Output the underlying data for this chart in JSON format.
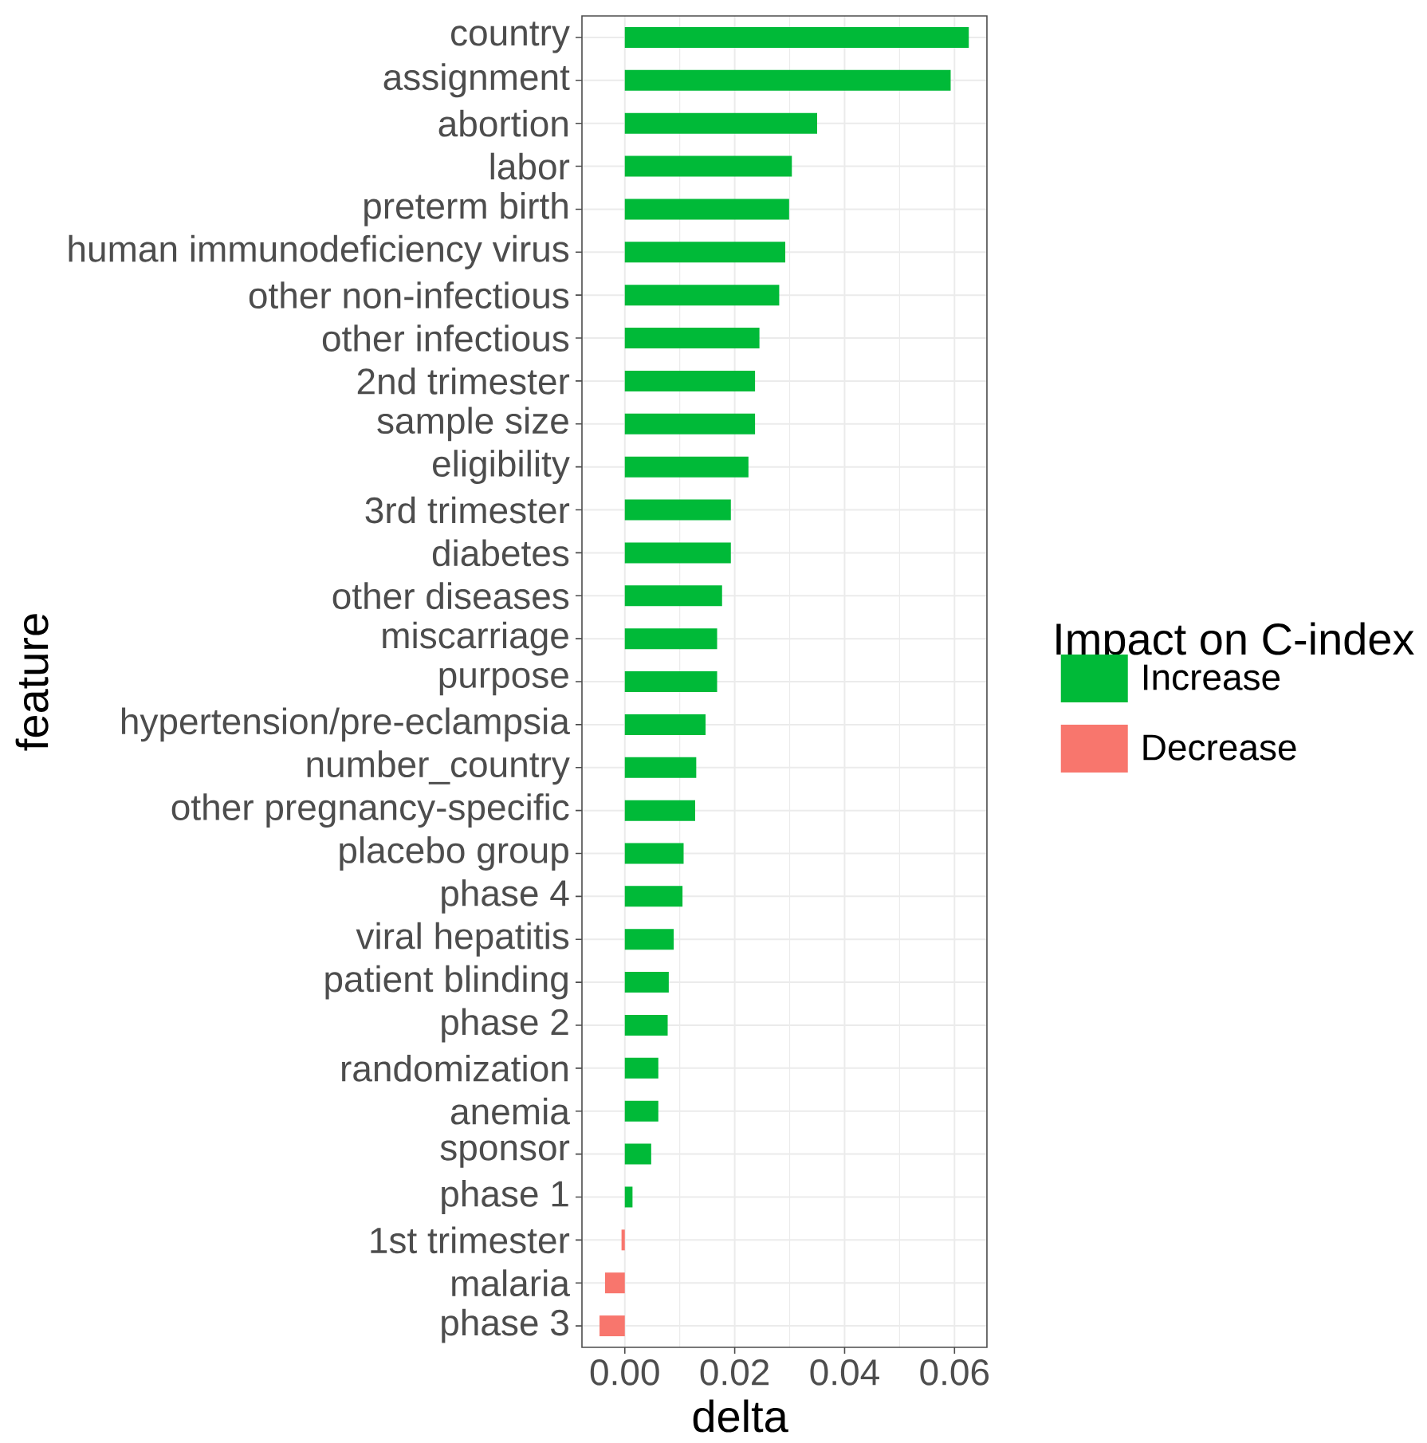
{
  "chart_data": {
    "type": "bar",
    "orientation": "horizontal",
    "xlabel": "delta",
    "ylabel": "feature",
    "legend_title": "Impact on C-index",
    "legend": "right",
    "grid": true,
    "categories": [
      "country",
      "assignment",
      "abortion",
      "labor",
      "preterm birth",
      "human immunodeficiency virus",
      "other non-infectious",
      "other infectious",
      "2nd trimester",
      "sample size",
      "eligibility",
      "3rd trimester",
      "diabetes",
      "other diseases",
      "miscarriage",
      "purpose",
      "hypertension/pre-eclampsia",
      "number_country",
      "other pregnancy-specific",
      "placebo group",
      "phase 4",
      "viral hepatitis",
      "patient blinding",
      "phase 2",
      "randomization",
      "anemia",
      "sponsor",
      "phase 1",
      "1st trimester",
      "malaria",
      "phase 3"
    ],
    "series": [
      {
        "name": "Increase",
        "color": "#00ba38",
        "values": [
          0.0626,
          0.0593,
          0.035,
          0.0304,
          0.0299,
          0.0292,
          0.0281,
          0.0245,
          0.0237,
          0.0237,
          0.0225,
          0.0193,
          0.0193,
          0.0177,
          0.0168,
          0.0168,
          0.0147,
          0.013,
          0.0128,
          0.0107,
          0.0105,
          0.0089,
          0.008,
          0.0078,
          0.0061,
          0.0061,
          0.0048,
          0.0014,
          null,
          null,
          null
        ]
      },
      {
        "name": "Decrease",
        "color": "#f8766d",
        "values": [
          null,
          null,
          null,
          null,
          null,
          null,
          null,
          null,
          null,
          null,
          null,
          null,
          null,
          null,
          null,
          null,
          null,
          null,
          null,
          null,
          null,
          null,
          null,
          null,
          null,
          null,
          null,
          null,
          -0.0006,
          -0.0036,
          -0.0046
        ]
      }
    ],
    "xlim": [
      -0.0078,
      0.0659
    ],
    "xticks": [
      {
        "value": 0,
        "label": "0.00"
      },
      {
        "value": 0.02,
        "label": "0.02"
      },
      {
        "value": 0.04,
        "label": "0.04"
      },
      {
        "value": 0.06,
        "label": "0.06"
      }
    ]
  }
}
